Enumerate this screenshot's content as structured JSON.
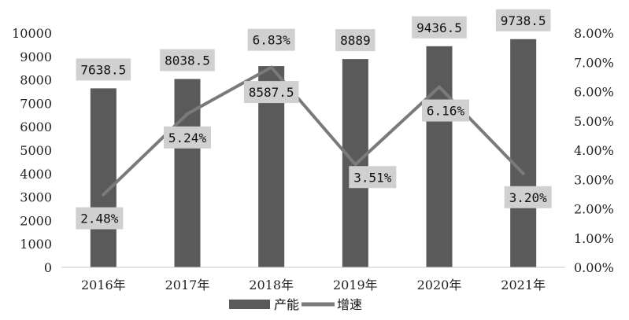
{
  "chart_data": {
    "type": "bar",
    "categories": [
      "2016年",
      "2017年",
      "2018年",
      "2019年",
      "2020年",
      "2021年"
    ],
    "series": [
      {
        "name": "产能",
        "type": "bar",
        "axis": "left",
        "values": [
          7638.5,
          8038.5,
          8587.5,
          8889,
          9436.5,
          9738.5
        ],
        "labels": [
          "7638.5",
          "8038.5",
          "8587.5",
          "8889",
          "9436.5",
          "9738.5"
        ],
        "color": "#5a5a5a"
      },
      {
        "name": "增速",
        "type": "line",
        "axis": "right",
        "values": [
          2.48,
          5.24,
          6.83,
          3.51,
          6.16,
          3.2
        ],
        "labels": [
          "2.48%",
          "5.24%",
          "6.83%",
          "3.51%",
          "6.16%",
          "3.20%"
        ],
        "color": "#7a7a7a"
      }
    ],
    "y_left": {
      "ylim": [
        0,
        10000
      ],
      "ticks": [
        "0",
        "1000",
        "2000",
        "3000",
        "4000",
        "5000",
        "6000",
        "7000",
        "8000",
        "9000",
        "10000"
      ]
    },
    "y_right": {
      "ylim": [
        0,
        8
      ],
      "ticks": [
        "0.00%",
        "1.00%",
        "2.00%",
        "3.00%",
        "4.00%",
        "5.00%",
        "6.00%",
        "7.00%",
        "8.00%"
      ]
    },
    "grid": false,
    "legend": "bottom",
    "label_box_color": "#d0d0d0"
  }
}
